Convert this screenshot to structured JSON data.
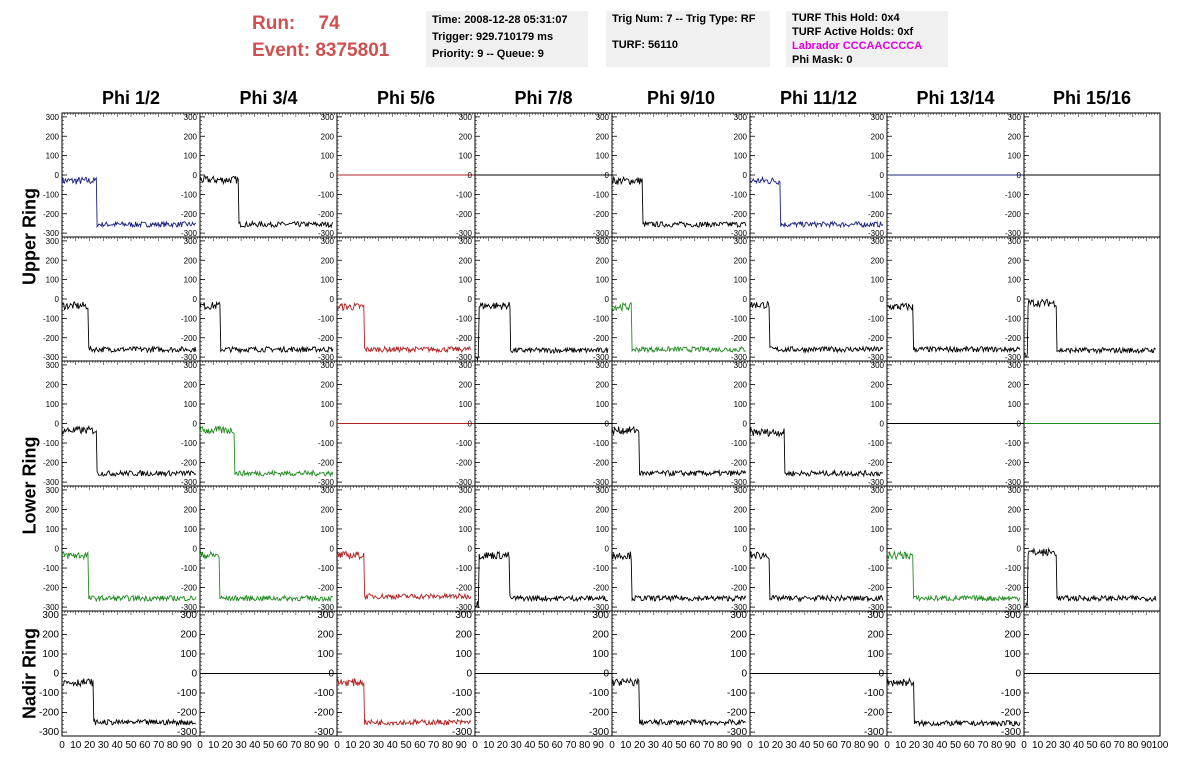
{
  "header": {
    "run_label": "Run:",
    "run_value": "74",
    "event_label": "Event:",
    "event_value": "8375801",
    "time": "Time: 2008-12-28 05:31:07",
    "trigger": "Trigger: 929.710179 ms",
    "priority": "Priority: 9 -- Queue: 9",
    "trig_num": "Trig Num: 7 -- Trig Type: RF",
    "turf": "TURF: 56110",
    "turf_this_hold": "TURF This Hold: 0x4",
    "turf_active_holds": "TURF Active Holds: 0xf",
    "labrador": "Labrador CCCAACCCCA",
    "phi_mask": "Phi Mask: 0"
  },
  "colors": {
    "title_red": "#d05050",
    "labrador_magenta": "#e000e0",
    "trace_black": "#000000",
    "trace_blue": "#1a237e",
    "trace_red": "#b22222",
    "trace_green": "#228b22",
    "info_bg": "#f0f0f0"
  },
  "chart_data": {
    "type": "line",
    "columns": [
      "Phi 1/2",
      "Phi 3/4",
      "Phi 5/6",
      "Phi 7/8",
      "Phi 9/10",
      "Phi 11/12",
      "Phi 13/14",
      "Phi 15/16"
    ],
    "rows": [
      "Upper Ring",
      "Lower Ring",
      "Nadir Ring"
    ],
    "xlim": [
      0,
      100
    ],
    "ylim": [
      -320,
      320
    ],
    "yticks": [
      300,
      200,
      100,
      0,
      -100,
      -200,
      -300
    ],
    "xticks": [
      0,
      10,
      20,
      30,
      40,
      50,
      60,
      70,
      80,
      90,
      100
    ],
    "panels": [
      [
        {
          "color": "trace_blue",
          "high": -30,
          "low": -255,
          "step": 25
        },
        {
          "color": "trace_black",
          "high": -25,
          "low": -255,
          "step": 28
        },
        {
          "color": "trace_red",
          "flat": 0
        },
        {
          "color": "trace_black",
          "flat": 0
        },
        {
          "color": "trace_black",
          "high": -30,
          "low": -255,
          "step": 22
        },
        {
          "color": "trace_blue",
          "high": -30,
          "low": -255,
          "step": 22
        },
        {
          "color": "trace_blue",
          "flat": 0
        },
        {
          "color": "trace_black",
          "flat": 0
        }
      ],
      [
        {
          "color": "trace_black",
          "high": -35,
          "low": -260,
          "step": 19
        },
        {
          "color": "trace_black",
          "high": -35,
          "low": -260,
          "step": 15
        },
        {
          "color": "trace_red",
          "high": -40,
          "low": -260,
          "step": 20
        },
        {
          "color": "trace_black",
          "high": -35,
          "low": -265,
          "step": 26,
          "dip": 3
        },
        {
          "color": "trace_green",
          "high": -40,
          "low": -260,
          "step": 14
        },
        {
          "color": "trace_black",
          "high": -30,
          "low": -260,
          "step": 14
        },
        {
          "color": "trace_black",
          "high": -40,
          "low": -260,
          "step": 19
        },
        {
          "color": "trace_black",
          "high": -20,
          "low": -265,
          "step": 24,
          "dip": 3
        }
      ],
      [
        {
          "color": "trace_black",
          "high": -35,
          "low": -255,
          "step": 25
        },
        {
          "color": "trace_green",
          "high": -35,
          "low": -255,
          "step": 25
        },
        {
          "color": "trace_red",
          "flat": 0
        },
        {
          "color": "trace_black",
          "flat": 0
        },
        {
          "color": "trace_black",
          "high": -35,
          "low": -255,
          "step": 20
        },
        {
          "color": "trace_black",
          "high": -45,
          "low": -255,
          "step": 25
        },
        {
          "color": "trace_black",
          "flat": 0
        },
        {
          "color": "trace_green",
          "flat": 0
        }
      ],
      [
        {
          "color": "trace_green",
          "high": -35,
          "low": -255,
          "step": 19
        },
        {
          "color": "trace_green",
          "high": -35,
          "low": -255,
          "step": 14
        },
        {
          "color": "trace_red",
          "high": -35,
          "low": -245,
          "step": 20
        },
        {
          "color": "trace_black",
          "high": -35,
          "low": -255,
          "step": 25,
          "dip": 3
        },
        {
          "color": "trace_black",
          "high": -35,
          "low": -255,
          "step": 14
        },
        {
          "color": "trace_black",
          "high": -35,
          "low": -255,
          "step": 14
        },
        {
          "color": "trace_green",
          "high": -35,
          "low": -255,
          "step": 19
        },
        {
          "color": "trace_black",
          "high": -20,
          "low": -255,
          "step": 24,
          "dip": 3
        }
      ],
      [
        {
          "color": "trace_black",
          "high": -45,
          "low": -250,
          "step": 23
        },
        {
          "color": "trace_black",
          "flat": 0
        },
        {
          "color": "trace_red",
          "high": -45,
          "low": -250,
          "step": 20
        },
        {
          "color": "trace_black",
          "flat": 0
        },
        {
          "color": "trace_black",
          "high": -45,
          "low": -250,
          "step": 20
        },
        {
          "color": "trace_black",
          "flat": 0
        },
        {
          "color": "trace_black",
          "high": -45,
          "low": -255,
          "step": 20
        },
        {
          "color": "trace_black",
          "flat": 0
        }
      ]
    ]
  }
}
